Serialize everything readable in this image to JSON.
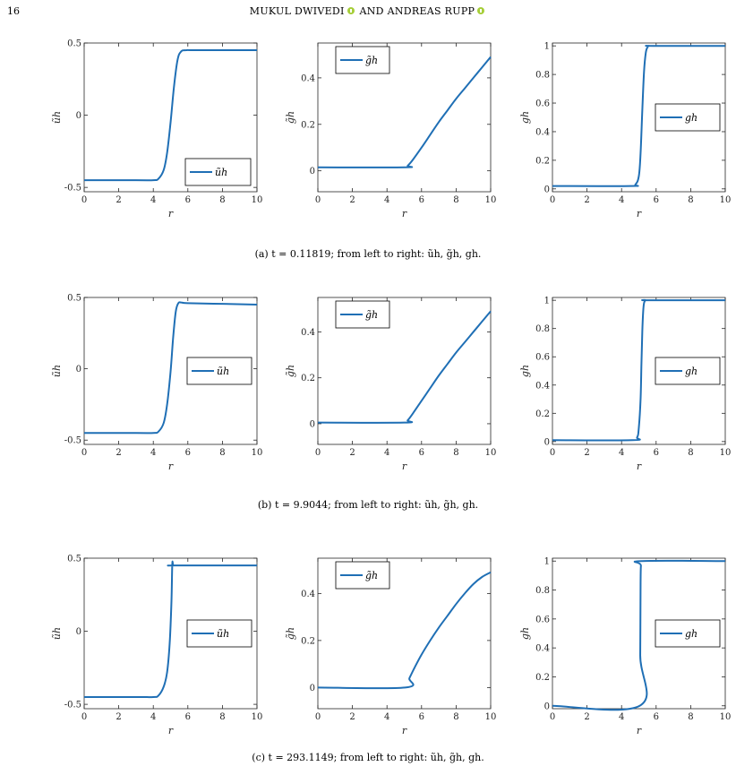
{
  "header": {
    "page_number": "16",
    "running_head_author1": "MUKUL DWIVEDI",
    "running_head_and": "AND",
    "running_head_author2": "ANDREAS RUPP"
  },
  "captions": [
    "(a) t = 0.11819; from left to right: ũh, g̃h, gh.",
    "(b) t = 9.9044; from left to right: ũh, g̃h, gh.",
    "(c) t = 293.1149; from left to right: ũh, g̃h, gh."
  ],
  "series_color": "#1f6fb5",
  "chart_data": [
    {
      "type": "line",
      "row": "a",
      "col": 0,
      "xlabel": "r",
      "ylabel": "ũh",
      "legend": "ũh",
      "legend_pos": "lower-right",
      "xlim": [
        0,
        10
      ],
      "ylim": [
        -0.53,
        0.5
      ],
      "xticks": [
        0,
        2,
        4,
        6,
        8,
        10
      ],
      "yticks": [
        -0.5,
        0,
        0.5
      ],
      "ytick_labels": [
        "-0.5",
        "0",
        "0.5"
      ],
      "x": [
        0,
        3,
        4,
        4.3,
        4.6,
        4.8,
        5,
        5.2,
        5.4,
        5.6,
        5.9,
        6.5,
        10
      ],
      "y": [
        -0.45,
        -0.45,
        -0.45,
        -0.44,
        -0.38,
        -0.26,
        -0.05,
        0.2,
        0.38,
        0.44,
        0.45,
        0.45,
        0.45
      ]
    },
    {
      "type": "line",
      "row": "a",
      "col": 1,
      "xlabel": "r",
      "ylabel": "g̃h",
      "legend": "g̃h",
      "legend_pos": "top-left",
      "xlim": [
        0,
        10
      ],
      "ylim": [
        -0.09,
        0.55
      ],
      "xticks": [
        0,
        2,
        4,
        6,
        8,
        10
      ],
      "yticks": [
        0,
        0.2,
        0.4
      ],
      "ytick_labels": [
        "0",
        "0.2",
        "0.4"
      ],
      "x": [
        0,
        5,
        5.2,
        5.5,
        6,
        6.5,
        7,
        7.5,
        8,
        8.5,
        9,
        9.5,
        10
      ],
      "y": [
        0.015,
        0.015,
        0.022,
        0.048,
        0.1,
        0.155,
        0.21,
        0.26,
        0.31,
        0.355,
        0.4,
        0.445,
        0.49
      ]
    },
    {
      "type": "line",
      "row": "a",
      "col": 2,
      "xlabel": "r",
      "ylabel": "gh",
      "legend": "gh",
      "legend_pos": "right",
      "xlim": [
        0,
        10
      ],
      "ylim": [
        -0.02,
        1.02
      ],
      "xticks": [
        0,
        2,
        4,
        6,
        8,
        10
      ],
      "yticks": [
        0,
        0.2,
        0.4,
        0.6,
        0.8,
        1
      ],
      "ytick_labels": [
        "0",
        "0.2",
        "0.4",
        "0.6",
        "0.8",
        "1"
      ],
      "x": [
        0,
        4.5,
        4.8,
        5,
        5.1,
        5.2,
        5.3,
        5.4,
        5.5,
        5.6,
        5.8,
        10
      ],
      "y": [
        0.02,
        0.02,
        0.03,
        0.09,
        0.25,
        0.55,
        0.82,
        0.95,
        0.99,
        1,
        1,
        1
      ]
    },
    {
      "type": "line",
      "row": "b",
      "col": 0,
      "xlabel": "r",
      "ylabel": "ũh",
      "legend": "ũh",
      "legend_pos": "right",
      "xlim": [
        0,
        10
      ],
      "ylim": [
        -0.53,
        0.5
      ],
      "xticks": [
        0,
        2,
        4,
        6,
        8,
        10
      ],
      "yticks": [
        -0.5,
        0,
        0.5
      ],
      "ytick_labels": [
        "-0.5",
        "0",
        "0.5"
      ],
      "x": [
        0,
        3,
        4,
        4.3,
        4.6,
        4.8,
        5,
        5.15,
        5.3,
        5.45,
        5.6,
        6,
        8,
        10
      ],
      "y": [
        -0.45,
        -0.45,
        -0.45,
        -0.44,
        -0.38,
        -0.25,
        -0.02,
        0.22,
        0.4,
        0.46,
        0.465,
        0.46,
        0.455,
        0.45
      ]
    },
    {
      "type": "line",
      "row": "b",
      "col": 1,
      "xlabel": "r",
      "ylabel": "g̃h",
      "legend": "g̃h",
      "legend_pos": "top-left",
      "xlim": [
        0,
        10
      ],
      "ylim": [
        -0.09,
        0.55
      ],
      "xticks": [
        0,
        2,
        4,
        6,
        8,
        10
      ],
      "yticks": [
        0,
        0.2,
        0.4
      ],
      "ytick_labels": [
        "0",
        "0.2",
        "0.4"
      ],
      "x": [
        0,
        5,
        5.2,
        5.5,
        6,
        6.5,
        7,
        7.5,
        8,
        8.5,
        9,
        9.5,
        10
      ],
      "y": [
        0.005,
        0.005,
        0.015,
        0.045,
        0.1,
        0.155,
        0.21,
        0.26,
        0.31,
        0.355,
        0.4,
        0.445,
        0.49
      ]
    },
    {
      "type": "line",
      "row": "b",
      "col": 2,
      "xlabel": "r",
      "ylabel": "gh",
      "legend": "gh",
      "legend_pos": "right",
      "xlim": [
        0,
        10
      ],
      "ylim": [
        -0.02,
        1.02
      ],
      "xticks": [
        0,
        2,
        4,
        6,
        8,
        10
      ],
      "yticks": [
        0,
        0.2,
        0.4,
        0.6,
        0.8,
        1
      ],
      "ytick_labels": [
        "0",
        "0.2",
        "0.4",
        "0.6",
        "0.8",
        "1"
      ],
      "x": [
        0,
        4.6,
        4.9,
        5,
        5.1,
        5.15,
        5.2,
        5.25,
        5.3,
        5.4,
        5.6,
        10
      ],
      "y": [
        0.01,
        0.01,
        0.03,
        0.1,
        0.3,
        0.55,
        0.78,
        0.92,
        0.98,
        1,
        1,
        1
      ]
    },
    {
      "type": "line",
      "row": "c",
      "col": 0,
      "xlabel": "r",
      "ylabel": "ũh",
      "legend": "ũh",
      "legend_pos": "right",
      "xlim": [
        0,
        10
      ],
      "ylim": [
        -0.53,
        0.5
      ],
      "xticks": [
        0,
        2,
        4,
        6,
        8,
        10
      ],
      "yticks": [
        -0.5,
        0,
        0.5
      ],
      "ytick_labels": [
        "-0.5",
        "0",
        "0.5"
      ],
      "x": [
        0,
        3,
        4,
        4.3,
        4.6,
        4.8,
        4.95,
        5.05,
        5.1,
        5.15,
        5.25,
        10
      ],
      "y": [
        -0.45,
        -0.45,
        -0.45,
        -0.44,
        -0.38,
        -0.28,
        -0.08,
        0.2,
        0.46,
        0.45,
        0.45,
        0.45
      ]
    },
    {
      "type": "line",
      "row": "c",
      "col": 1,
      "xlabel": "r",
      "ylabel": "g̃h",
      "legend": "g̃h",
      "legend_pos": "top-left",
      "xlim": [
        0,
        10
      ],
      "ylim": [
        -0.09,
        0.55
      ],
      "xticks": [
        0,
        2,
        4,
        6,
        8,
        10
      ],
      "yticks": [
        0,
        0.2,
        0.4
      ],
      "ytick_labels": [
        "0",
        "0.2",
        "0.4"
      ],
      "x": [
        0,
        5.05,
        5.3,
        5.6,
        6,
        6.5,
        7,
        7.5,
        8,
        8.5,
        9,
        9.5,
        10
      ],
      "y": [
        0,
        0,
        0.04,
        0.085,
        0.14,
        0.2,
        0.255,
        0.305,
        0.355,
        0.4,
        0.44,
        0.47,
        0.49
      ]
    },
    {
      "type": "line",
      "row": "c",
      "col": 2,
      "xlabel": "r",
      "ylabel": "gh",
      "legend": "gh",
      "legend_pos": "right",
      "xlim": [
        0,
        10
      ],
      "ylim": [
        -0.02,
        1.02
      ],
      "xticks": [
        0,
        2,
        4,
        6,
        8,
        10
      ],
      "yticks": [
        0,
        0.2,
        0.4,
        0.6,
        0.8,
        1
      ],
      "ytick_labels": [
        "0",
        "0.2",
        "0.4",
        "0.6",
        "0.8",
        "1"
      ],
      "x": [
        0,
        5.05,
        5.08,
        5.1,
        5.12,
        5.15,
        10
      ],
      "y": [
        0,
        0,
        0.35,
        0.85,
        0.97,
        1,
        1
      ]
    }
  ]
}
